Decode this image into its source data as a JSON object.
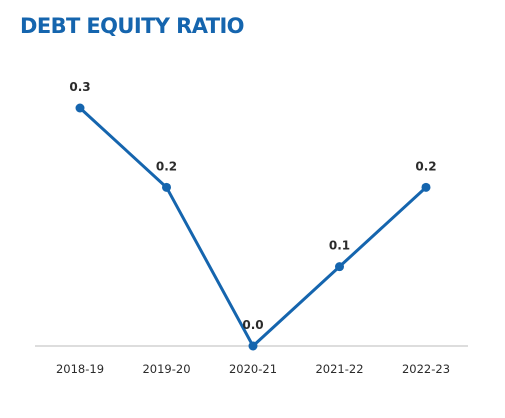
{
  "chart_data": {
    "type": "line",
    "title": "DEBT EQUITY RATIO",
    "categories": [
      "2018-19",
      "2019-20",
      "2020-21",
      "2021-22",
      "2022-23"
    ],
    "values": [
      0.3,
      0.2,
      0.0,
      0.1,
      0.2
    ],
    "data_labels": [
      "0.3",
      "0.2",
      "0.0",
      "0.1",
      "0.2"
    ],
    "xlabel": "",
    "ylabel": "",
    "ylim": [
      0,
      0.3
    ],
    "grid": false,
    "legend": "none",
    "line_color": "#1565ae",
    "axis_color": "#bbbbbb"
  }
}
